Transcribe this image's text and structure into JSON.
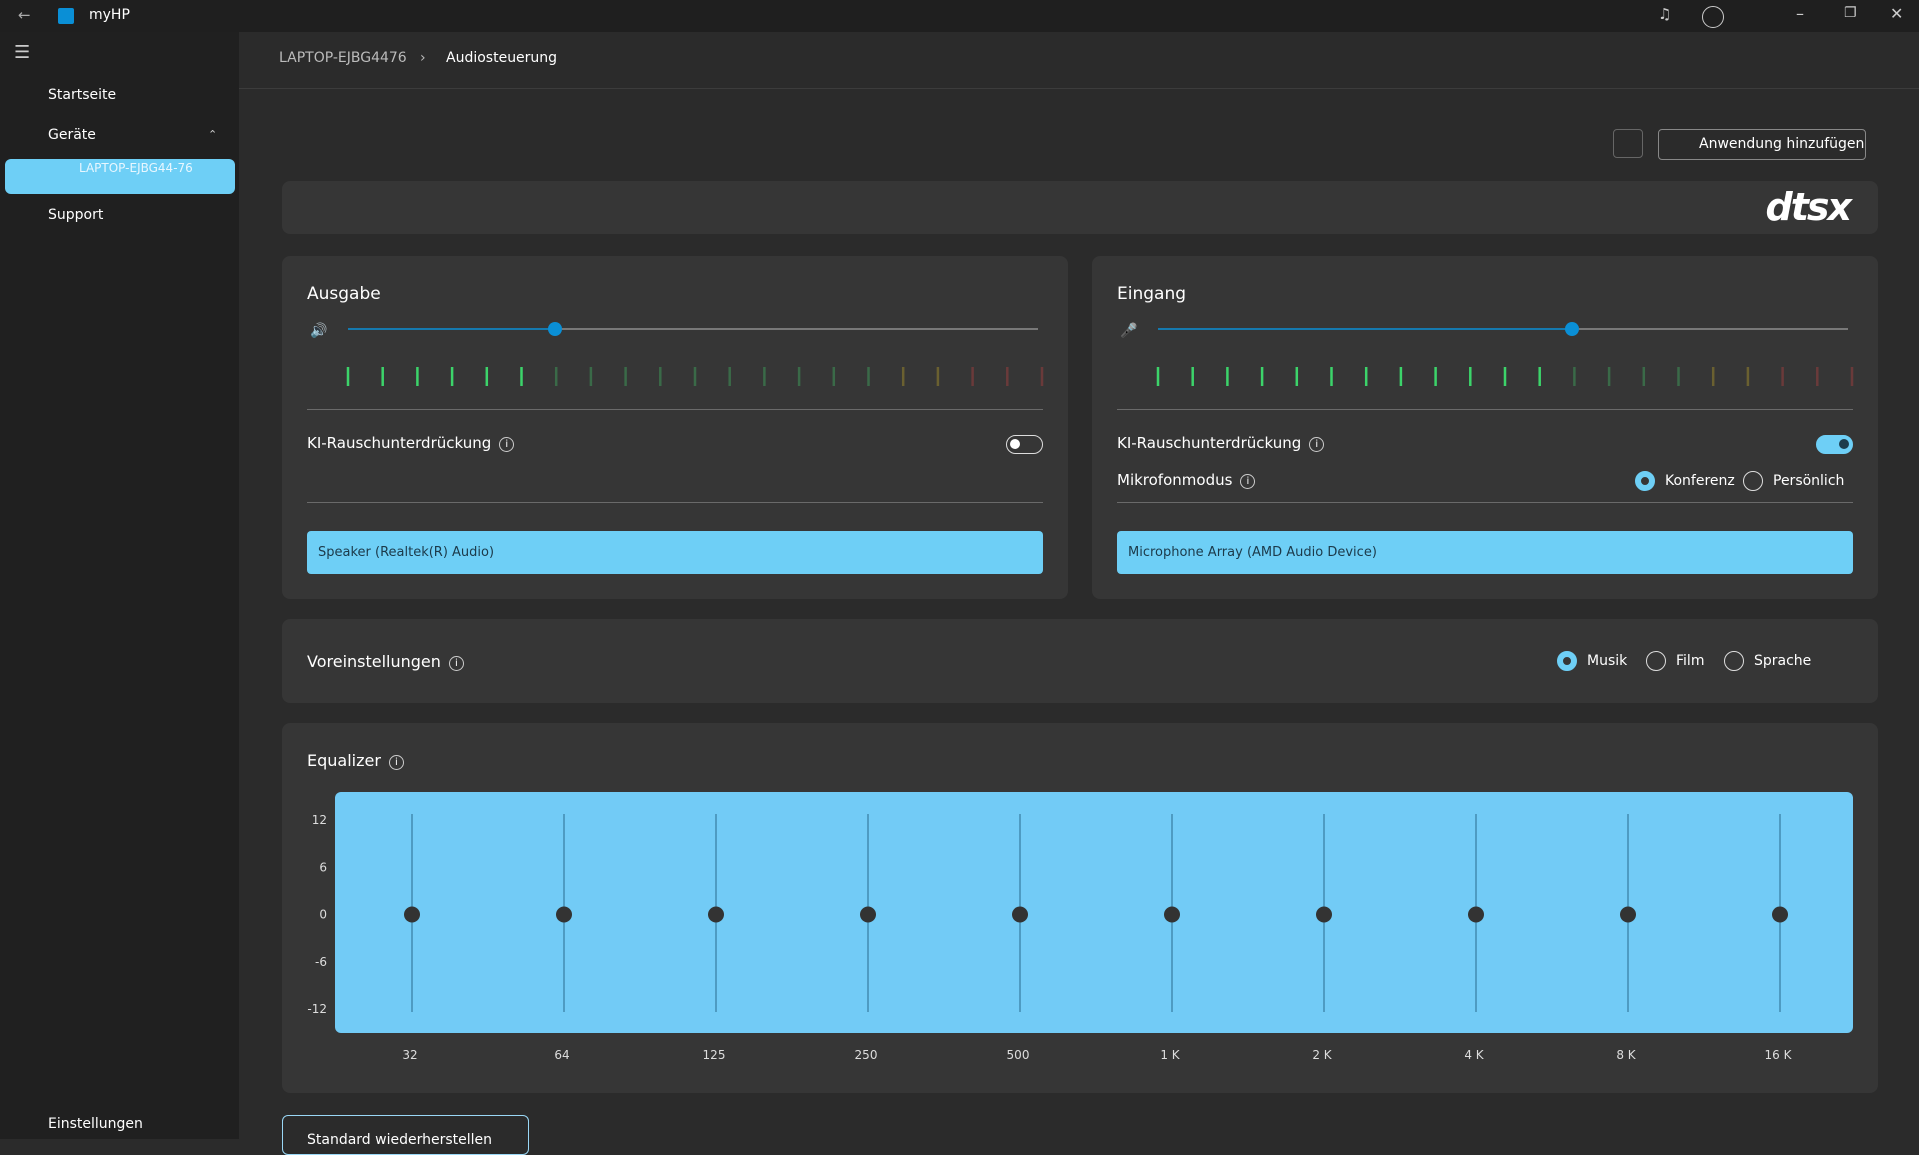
{
  "titlebar": {
    "app": "myHP"
  },
  "sidebar": {
    "items": [
      {
        "label": "Startseite"
      },
      {
        "label": "Geräte"
      },
      {
        "label": "LAPTOP-EJBG44-76"
      },
      {
        "label": "Support"
      }
    ],
    "settings": "Einstellungen"
  },
  "breadcrumb": [
    "LAPTOP-EJBG4476",
    "Audiosteuerung"
  ],
  "add_app": "Anwendung hinzufügen",
  "logo": "dtsx",
  "volume_lim": [
    0,
    100
  ],
  "output": {
    "title": "Ausgabe",
    "volume": 30,
    "meter_lit": 6,
    "noise_label": "KI-Rauschunterdrückung",
    "noise_on": false,
    "device": "Speaker (Realtek(R) Audio)"
  },
  "input": {
    "title": "Eingang",
    "volume": 60,
    "meter_lit": 12,
    "noise_label": "KI-Rauschunterdrückung",
    "noise_on": true,
    "mic_mode_label": "Mikrofonmodus",
    "mic_modes": [
      "Konferenz",
      "Persönlich"
    ],
    "mic_mode_selected": 0,
    "device": "Microphone Array (AMD Audio Device)"
  },
  "presets": {
    "label": "Voreinstellungen",
    "options": [
      "Musik",
      "Film",
      "Sprache"
    ],
    "selected": 0
  },
  "equalizer": {
    "label": "Equalizer",
    "bands": [
      "32",
      "64",
      "125",
      "250",
      "500",
      "1 K",
      "2 K",
      "4 K",
      "8 K",
      "16 K"
    ],
    "gains": [
      0,
      0,
      0,
      0,
      0,
      0,
      0,
      0,
      0,
      0
    ],
    "ylim": [
      -12,
      12
    ],
    "yticks": [
      12,
      6,
      0,
      -6,
      -12
    ]
  },
  "reset": "Standard wiederherstellen"
}
